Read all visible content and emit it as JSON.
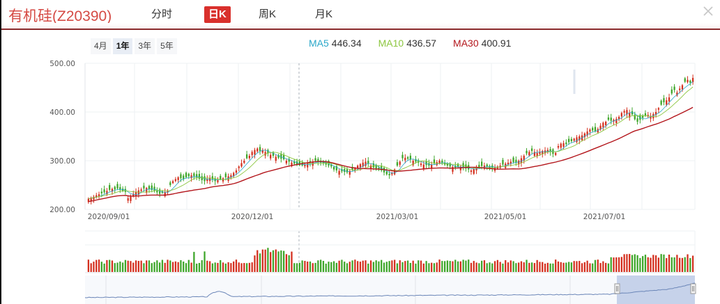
{
  "header": {
    "title": "有机硅(Z20390)",
    "tabs": [
      {
        "label": "分时",
        "active": false
      },
      {
        "label": "日K",
        "active": true
      },
      {
        "label": "周K",
        "active": false
      },
      {
        "label": "月K",
        "active": false
      }
    ],
    "close_icon": "close-icon"
  },
  "ranges": [
    {
      "label": "4月",
      "active": false
    },
    {
      "label": "1年",
      "active": true
    },
    {
      "label": "3年",
      "active": false
    },
    {
      "label": "5年",
      "active": false
    }
  ],
  "legend": {
    "ma5": {
      "label": "MA5",
      "value": "446.34",
      "color": "#2aa7c9"
    },
    "ma10": {
      "label": "MA10",
      "value": "436.57",
      "color": "#8cc63f"
    },
    "ma30": {
      "label": "MA30",
      "value": "400.91",
      "color": "#b3151b"
    }
  },
  "colors": {
    "up": "#d4301f",
    "down": "#3ea62a",
    "accent": "#d9302c",
    "navigator_line": "#6b86b8",
    "navigator_selection": "#c6d2ea"
  },
  "chart_data": {
    "type": "candlestick",
    "title": "有机硅(Z20390) 日K",
    "xlabel": "",
    "ylabel": "",
    "ylim": [
      200,
      500
    ],
    "y_ticks": [
      "500.00",
      "400.00",
      "300.00",
      "200.00"
    ],
    "x_ticks": [
      "2020/09/01",
      "2020/12/01",
      "2021/03/01",
      "2021/05/01",
      "2021/07/01"
    ],
    "grid": true,
    "legend_position": "top",
    "approx_close_series": [
      222,
      224,
      226,
      229,
      231,
      233,
      235,
      238,
      240,
      242,
      241,
      243,
      240,
      238,
      236,
      223,
      226,
      232,
      236,
      239,
      241,
      243,
      244,
      242,
      240,
      238,
      235,
      232,
      234,
      236,
      238,
      250,
      258,
      262,
      266,
      264,
      262,
      266,
      268,
      270,
      268,
      266,
      263,
      260,
      258,
      262,
      264,
      262,
      258,
      260,
      262,
      264,
      266,
      268,
      270,
      275,
      280,
      288,
      295,
      300,
      305,
      310,
      318,
      322,
      325,
      320,
      322,
      318,
      315,
      312,
      310,
      308,
      306,
      304,
      303,
      300,
      298,
      296,
      294,
      292,
      291,
      290,
      292,
      294,
      296,
      298,
      300,
      298,
      296,
      294,
      292,
      290,
      288,
      282,
      280,
      279,
      278,
      277,
      276,
      279,
      281,
      285,
      290,
      293,
      296,
      298,
      294,
      290,
      286,
      284,
      282,
      280,
      276,
      272,
      270,
      275,
      282,
      290,
      298,
      305,
      306,
      304,
      302,
      300,
      298,
      296,
      294,
      292,
      291,
      290,
      292,
      294,
      297,
      300,
      296,
      292,
      290,
      288,
      287,
      286,
      287,
      288,
      286,
      284,
      282,
      280,
      283,
      285,
      287,
      289,
      290,
      288,
      286,
      285,
      286,
      288,
      290,
      292,
      294,
      296,
      298,
      297,
      296,
      300,
      305,
      310,
      315,
      318,
      320,
      318,
      316,
      318,
      320,
      321,
      322,
      318,
      314,
      316,
      330,
      335,
      336,
      334,
      338,
      340,
      345,
      348,
      350,
      352,
      356,
      360,
      364,
      362,
      360,
      365,
      372,
      378,
      380,
      384,
      382,
      384,
      386,
      390,
      398,
      402,
      404,
      398,
      395,
      385,
      380,
      384,
      388,
      392,
      394,
      392,
      396,
      400,
      408,
      415,
      420,
      424,
      430,
      438,
      445,
      440,
      448,
      455,
      462,
      466,
      460,
      470
    ],
    "moving_averages": {
      "MA5": 446.34,
      "MA10": 436.57,
      "MA30": 400.91
    },
    "volume_pane": true,
    "navigator": {
      "selection_start_fraction": 0.872,
      "selection_end_fraction": 1.0
    }
  }
}
